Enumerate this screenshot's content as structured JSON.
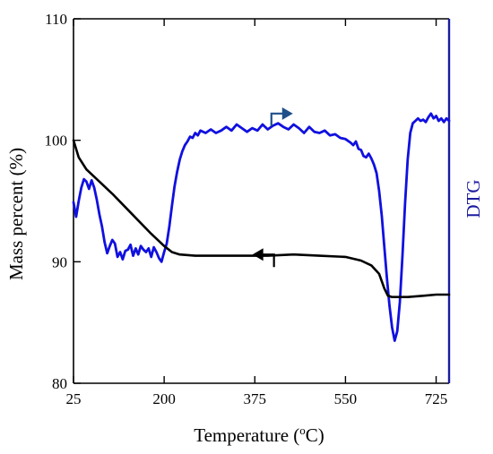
{
  "chart_data": {
    "type": "line",
    "title": "",
    "xlabel": {
      "main": "Temperature (",
      "sup": "o",
      "tail": "C)"
    },
    "ylabel": "Mass percent (%)",
    "y2label": "DTG",
    "xlim": [
      25,
      750
    ],
    "ylim": [
      80,
      110
    ],
    "x_ticks": [
      25,
      200,
      375,
      550,
      725
    ],
    "y_ticks": [
      80,
      90,
      100,
      110
    ],
    "grid": false,
    "legend": "none",
    "colors": {
      "mass": "#000000",
      "dtg": "#1010e0",
      "right_axis": "#1a1aa0",
      "dtg_arrow": "#1f4f8a",
      "mass_arrow": "#000000"
    },
    "series": [
      {
        "key": "mass",
        "axis": "left",
        "x": [
          25,
          35,
          50,
          75,
          100,
          125,
          150,
          175,
          200,
          215,
          230,
          260,
          300,
          350,
          400,
          450,
          500,
          550,
          580,
          600,
          615,
          625,
          632,
          640,
          650,
          670,
          700,
          725,
          750
        ],
        "y": [
          100.0,
          98.6,
          97.6,
          96.6,
          95.6,
          94.5,
          93.4,
          92.3,
          91.3,
          90.8,
          90.6,
          90.5,
          90.5,
          90.5,
          90.5,
          90.6,
          90.5,
          90.4,
          90.1,
          89.7,
          89.0,
          87.8,
          87.2,
          87.1,
          87.1,
          87.1,
          87.2,
          87.3,
          87.3
        ]
      },
      {
        "key": "dtg",
        "axis": "right",
        "x": [
          25,
          30,
          35,
          40,
          45,
          50,
          55,
          60,
          65,
          70,
          75,
          80,
          85,
          90,
          95,
          100,
          105,
          110,
          115,
          120,
          125,
          130,
          135,
          140,
          145,
          150,
          155,
          160,
          165,
          170,
          175,
          180,
          185,
          190,
          195,
          200,
          205,
          210,
          215,
          220,
          225,
          230,
          235,
          240,
          245,
          250,
          255,
          260,
          265,
          270,
          280,
          290,
          300,
          310,
          320,
          330,
          340,
          350,
          360,
          370,
          380,
          390,
          400,
          410,
          420,
          430,
          440,
          450,
          460,
          470,
          480,
          490,
          500,
          510,
          520,
          530,
          540,
          550,
          560,
          565,
          570,
          575,
          580,
          585,
          590,
          595,
          600,
          605,
          610,
          615,
          620,
          625,
          630,
          635,
          640,
          645,
          650,
          655,
          660,
          665,
          670,
          675,
          680,
          685,
          690,
          695,
          700,
          705,
          710,
          715,
          720,
          725,
          730,
          735,
          740,
          745,
          750
        ],
        "y": [
          94.9,
          93.7,
          95.0,
          96.1,
          96.8,
          96.6,
          96.0,
          96.7,
          96.1,
          95.1,
          93.9,
          92.9,
          91.6,
          90.7,
          91.3,
          91.8,
          91.5,
          90.4,
          90.8,
          90.2,
          90.9,
          91.0,
          91.4,
          90.5,
          91.1,
          90.6,
          91.3,
          91.0,
          90.8,
          91.1,
          90.4,
          91.2,
          90.8,
          90.3,
          90.0,
          90.8,
          91.5,
          92.9,
          94.6,
          96.2,
          97.4,
          98.4,
          99.1,
          99.6,
          99.9,
          100.3,
          100.2,
          100.6,
          100.4,
          100.8,
          100.6,
          100.9,
          100.6,
          100.8,
          101.1,
          100.8,
          101.3,
          101.0,
          100.7,
          101.0,
          100.8,
          101.3,
          100.9,
          101.2,
          101.4,
          101.1,
          100.9,
          101.3,
          101.0,
          100.6,
          101.1,
          100.7,
          100.6,
          100.8,
          100.4,
          100.5,
          100.2,
          100.1,
          99.8,
          99.6,
          99.9,
          99.3,
          99.2,
          98.7,
          98.6,
          98.9,
          98.5,
          98.0,
          97.3,
          95.8,
          93.8,
          91.2,
          88.7,
          86.4,
          84.6,
          83.5,
          84.3,
          86.7,
          90.5,
          94.8,
          98.4,
          100.6,
          101.4,
          101.6,
          101.8,
          101.6,
          101.7,
          101.5,
          101.9,
          102.2,
          101.8,
          102.0,
          101.6,
          101.8,
          101.5,
          101.8,
          101.6
        ]
      }
    ],
    "annotations": [
      {
        "kind": "arrow",
        "points_to": "right",
        "series": "dtg",
        "at": {
          "x": 407,
          "y": 102.2
        }
      },
      {
        "kind": "arrow",
        "points_to": "left",
        "series": "mass",
        "at": {
          "x": 412,
          "y": 90.6
        }
      }
    ]
  }
}
